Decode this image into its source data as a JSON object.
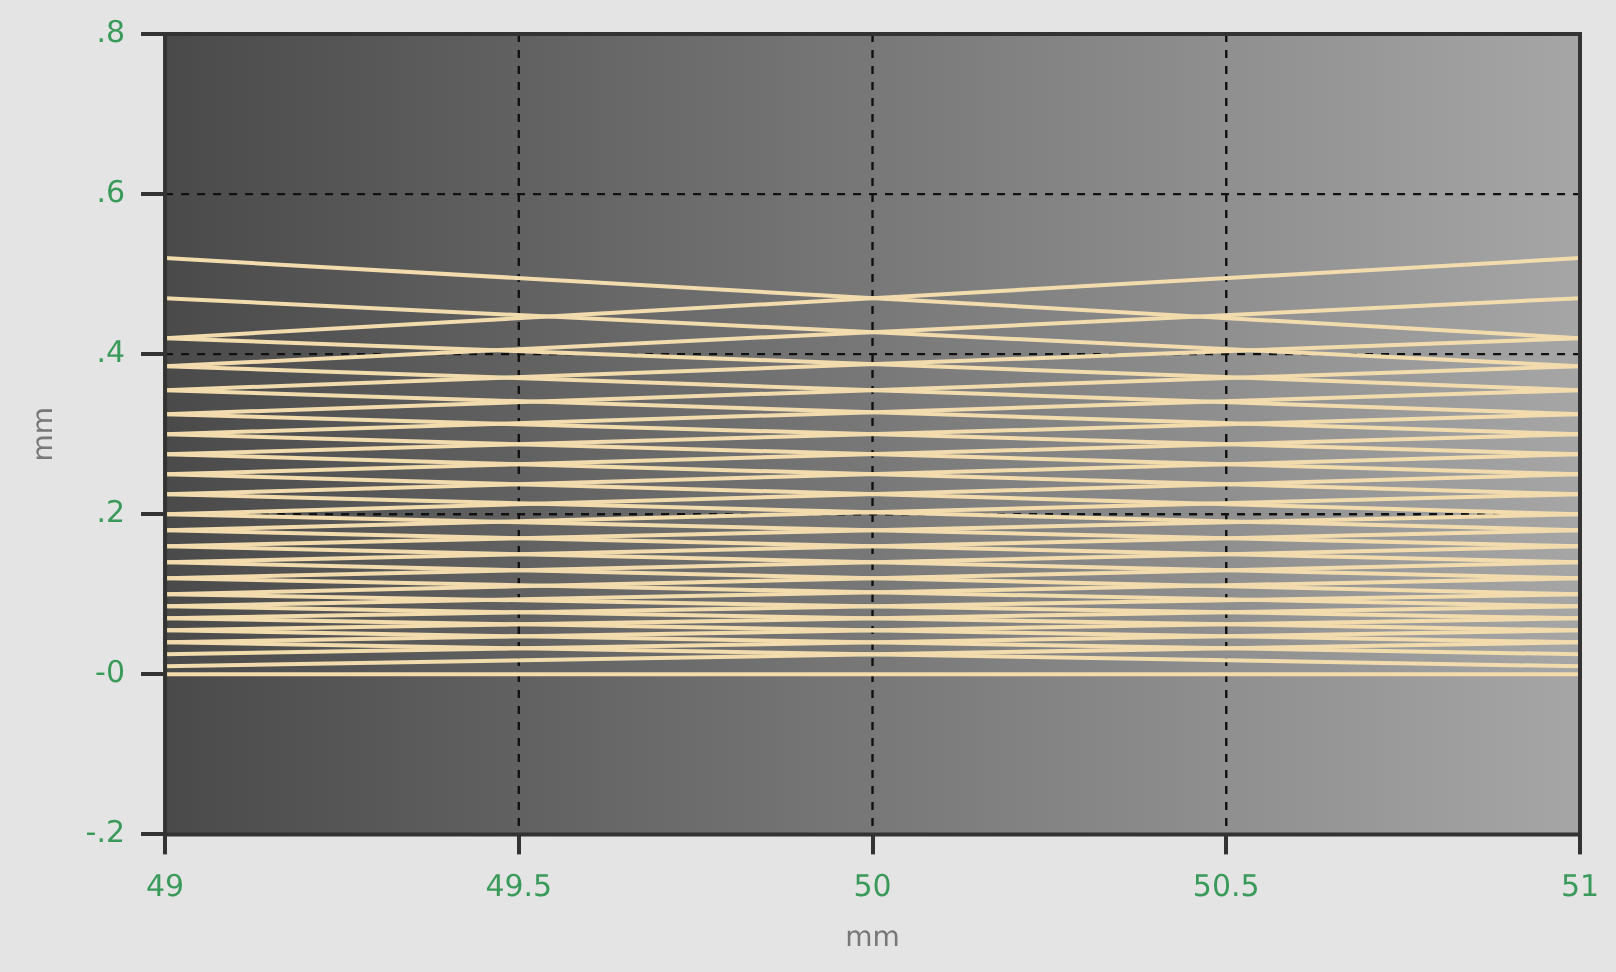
{
  "chart_data": {
    "type": "line",
    "xlabel": "mm",
    "ylabel": "mm",
    "xlim": [
      49,
      51
    ],
    "xticks": [
      49,
      49.5,
      50,
      50.5,
      51
    ],
    "ylim": [
      -0.2,
      0.8
    ],
    "yticks": [
      {
        "value": -0.2,
        "label": "-.2"
      },
      {
        "value": 0,
        "label": "-0"
      },
      {
        "value": 0.2,
        "label": ".2"
      },
      {
        "value": 0.4,
        "label": ".4"
      },
      {
        "value": 0.6,
        "label": ".6"
      },
      {
        "value": 0.8,
        "label": ".8"
      }
    ],
    "grid": true,
    "legend": false,
    "marker": "none",
    "line_style": "solid",
    "x": [
      49,
      51
    ],
    "series": [
      {
        "color": "#f2dcae",
        "values": [
          0.52,
          0.42
        ]
      },
      {
        "color": "#f2dcae",
        "values": [
          0.42,
          0.52
        ]
      },
      {
        "color": "#f2dcae",
        "values": [
          0.47,
          0.385
        ]
      },
      {
        "color": "#f2dcae",
        "values": [
          0.385,
          0.47
        ]
      },
      {
        "color": "#f2dcae",
        "values": [
          0.42,
          0.355
        ]
      },
      {
        "color": "#f2dcae",
        "values": [
          0.355,
          0.42
        ]
      },
      {
        "color": "#f2dcae",
        "values": [
          0.385,
          0.325
        ]
      },
      {
        "color": "#f2dcae",
        "values": [
          0.325,
          0.385
        ]
      },
      {
        "color": "#f2dcae",
        "values": [
          0.355,
          0.3
        ]
      },
      {
        "color": "#f2dcae",
        "values": [
          0.3,
          0.355
        ]
      },
      {
        "color": "#f2dcae",
        "values": [
          0.325,
          0.275
        ]
      },
      {
        "color": "#f2dcae",
        "values": [
          0.275,
          0.325
        ]
      },
      {
        "color": "#f2dcae",
        "values": [
          0.3,
          0.25
        ]
      },
      {
        "color": "#f2dcae",
        "values": [
          0.25,
          0.3
        ]
      },
      {
        "color": "#f2dcae",
        "values": [
          0.275,
          0.225
        ]
      },
      {
        "color": "#f2dcae",
        "values": [
          0.225,
          0.275
        ]
      },
      {
        "color": "#f2dcae",
        "values": [
          0.25,
          0.2
        ]
      },
      {
        "color": "#f2dcae",
        "values": [
          0.2,
          0.25
        ]
      },
      {
        "color": "#f2dcae",
        "values": [
          0.225,
          0.18
        ]
      },
      {
        "color": "#f2dcae",
        "values": [
          0.18,
          0.225
        ]
      },
      {
        "color": "#f2dcae",
        "values": [
          0.2,
          0.16
        ]
      },
      {
        "color": "#f2dcae",
        "values": [
          0.16,
          0.2
        ]
      },
      {
        "color": "#f2dcae",
        "values": [
          0.18,
          0.14
        ]
      },
      {
        "color": "#f2dcae",
        "values": [
          0.14,
          0.18
        ]
      },
      {
        "color": "#f2dcae",
        "values": [
          0.16,
          0.12
        ]
      },
      {
        "color": "#f2dcae",
        "values": [
          0.12,
          0.16
        ]
      },
      {
        "color": "#f2dcae",
        "values": [
          0.14,
          0.1
        ]
      },
      {
        "color": "#f2dcae",
        "values": [
          0.1,
          0.14
        ]
      },
      {
        "color": "#f2dcae",
        "values": [
          0.12,
          0.085
        ]
      },
      {
        "color": "#f2dcae",
        "values": [
          0.085,
          0.12
        ]
      },
      {
        "color": "#f2dcae",
        "values": [
          0.1,
          0.07
        ]
      },
      {
        "color": "#f2dcae",
        "values": [
          0.07,
          0.1
        ]
      },
      {
        "color": "#f2dcae",
        "values": [
          0.085,
          0.055
        ]
      },
      {
        "color": "#f2dcae",
        "values": [
          0.055,
          0.085
        ]
      },
      {
        "color": "#f2dcae",
        "values": [
          0.07,
          0.04
        ]
      },
      {
        "color": "#f2dcae",
        "values": [
          0.04,
          0.07
        ]
      },
      {
        "color": "#f2dcae",
        "values": [
          0.055,
          0.025
        ]
      },
      {
        "color": "#f2dcae",
        "values": [
          0.025,
          0.055
        ]
      },
      {
        "color": "#f2dcae",
        "values": [
          0.04,
          0.01
        ]
      },
      {
        "color": "#f2dcae",
        "values": [
          0.01,
          0.04
        ]
      },
      {
        "color": "#f2dcae",
        "values": [
          0,
          0
        ]
      }
    ]
  }
}
